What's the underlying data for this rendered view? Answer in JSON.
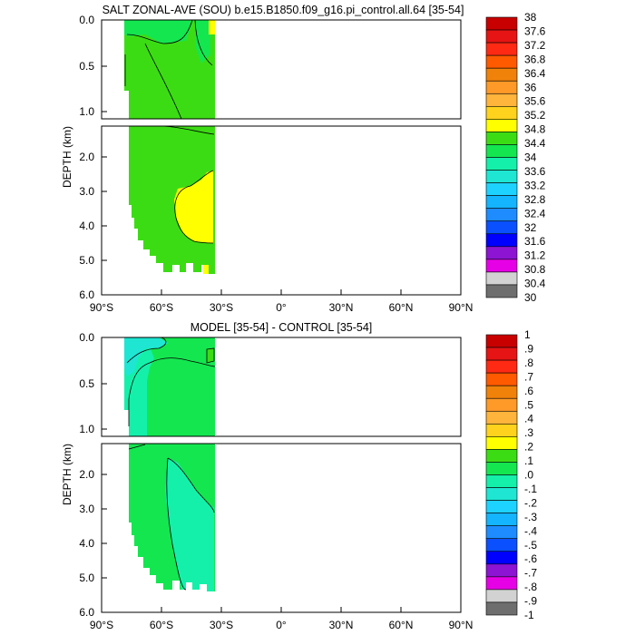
{
  "chart_data": [
    {
      "type": "heatmap",
      "title": "SALT ZONAL-AVE (SOU) b.e15.B1850.f09_g16.pi_control.all.64 [35-54]",
      "ylabel": "DEPTH (km)",
      "xlim": [
        -90,
        90
      ],
      "ylim": [
        6.0,
        0.0
      ],
      "upper_ylim": [
        1.1,
        0.0
      ],
      "x_ticks": [
        "90°S",
        "60°S",
        "30°S",
        "0°",
        "30°N",
        "60°N",
        "90°N"
      ],
      "y_ticks_upper": [
        "0.0",
        "0.5",
        "1.0"
      ],
      "y_ticks_lower": [
        "2.0",
        "3.0",
        "4.0",
        "5.0",
        "6.0"
      ],
      "colorbar_labels": [
        "38",
        "37.6",
        "37.2",
        "36.8",
        "36.4",
        "36",
        "35.6",
        "35.2",
        "34.8",
        "34.4",
        "34",
        "33.6",
        "33.2",
        "32.8",
        "32.4",
        "32",
        "31.6",
        "31.2",
        "30.8",
        "30.4",
        "30"
      ],
      "colorbar_colors": [
        "#c80000",
        "#e61414",
        "#ff2a14",
        "#ff5a00",
        "#f0820a",
        "#ff9a28",
        "#ffb43c",
        "#ffd21e",
        "#ffff00",
        "#3cdc14",
        "#14e650",
        "#14f0aa",
        "#1ee6d2",
        "#1ed2ff",
        "#14b4ff",
        "#1e8cff",
        "#0a50ff",
        "#0000ff",
        "#8c14d2",
        "#e600e6",
        "#d2d2d2",
        "#6e6e6e"
      ],
      "filled_regions": [
        {
          "value_range": [
            34.4,
            34.8
          ],
          "xs": [
            -76,
            -35
          ],
          "depth": [
            0,
            1.1
          ]
        },
        {
          "value_range": [
            34.4,
            34.8
          ],
          "xs": [
            -76,
            -35
          ],
          "depth": [
            1.1,
            5.4
          ]
        },
        {
          "value_range": [
            34.8,
            35.2
          ],
          "xs": [
            -45,
            -35
          ],
          "depth": [
            2.6,
            4.4
          ]
        },
        {
          "value_range": [
            34.0,
            34.4
          ],
          "xs": [
            -76,
            -65
          ],
          "depth": [
            0,
            0.15
          ]
        }
      ]
    },
    {
      "type": "heatmap",
      "title": "MODEL [35-54] - CONTROL [35-54]",
      "ylabel": "DEPTH (km)",
      "xlim": [
        -90,
        90
      ],
      "ylim": [
        6.0,
        0.0
      ],
      "upper_ylim": [
        1.1,
        0.0
      ],
      "x_ticks": [
        "90°S",
        "60°S",
        "30°S",
        "0°",
        "30°N",
        "60°N",
        "90°N"
      ],
      "y_ticks_upper": [
        "0.0",
        "0.5",
        "1.0"
      ],
      "y_ticks_lower": [
        "2.0",
        "3.0",
        "4.0",
        "5.0",
        "6.0"
      ],
      "colorbar_labels": [
        "1",
        ".9",
        ".8",
        ".7",
        ".6",
        ".5",
        ".4",
        ".3",
        ".2",
        ".1",
        ".0",
        "-.1",
        "-.2",
        "-.3",
        "-.4",
        "-.5",
        "-.6",
        "-.7",
        "-.8",
        "-.9",
        "-1"
      ],
      "colorbar_colors": [
        "#c80000",
        "#e61414",
        "#ff2a14",
        "#ff5a00",
        "#f0820a",
        "#ff9a28",
        "#ffb43c",
        "#ffd21e",
        "#ffff00",
        "#3cdc14",
        "#14e650",
        "#14f0aa",
        "#1ee6d2",
        "#1ed2ff",
        "#14b4ff",
        "#1e8cff",
        "#0a50ff",
        "#0000ff",
        "#8c14d2",
        "#e600e6",
        "#d2d2d2",
        "#6e6e6e"
      ],
      "filled_regions": [
        {
          "value_range": [
            0.0,
            0.1
          ],
          "xs": [
            -76,
            -35
          ],
          "depth": [
            0,
            5.4
          ]
        },
        {
          "value_range": [
            -0.1,
            0.0
          ],
          "xs": [
            -55,
            -35
          ],
          "depth": [
            1.6,
            5.4
          ]
        },
        {
          "value_range": [
            -0.2,
            -0.1
          ],
          "xs": [
            -76,
            -65
          ],
          "depth": [
            0,
            1.0
          ]
        }
      ]
    }
  ]
}
